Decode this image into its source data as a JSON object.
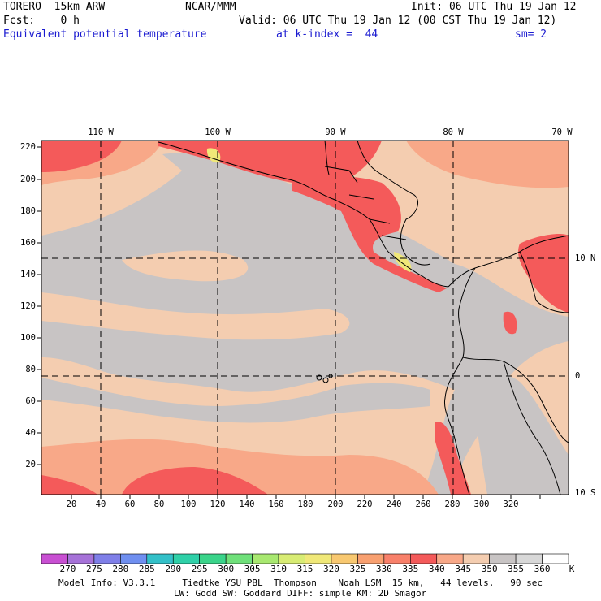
{
  "header": {
    "model": "TORERO  15km ARW",
    "org": "NCAR/MMM",
    "init": "Init: 06 UTC Thu 19 Jan 12",
    "fcst": "Fcst:    0 h",
    "valid": "Valid: 06 UTC Thu 19 Jan 12 (00 CST Thu 19 Jan 12)",
    "field": "Equivalent potential temperature",
    "level": "at k-index =  44",
    "smoothing": "sm= 2"
  },
  "map": {
    "lon_labels": [
      "110 W",
      "100 W",
      "90 W",
      "80 W",
      "70 W"
    ],
    "lat_labels_right": [
      "10 N",
      "0",
      "10 S"
    ],
    "y_ticks": [
      "220",
      "200",
      "180",
      "160",
      "140",
      "120",
      "100",
      "80",
      "60",
      "40",
      "20"
    ],
    "x_ticks": [
      "20",
      "40",
      "60",
      "80",
      "100",
      "120",
      "140",
      "160",
      "180",
      "200",
      "220",
      "240",
      "260",
      "280",
      "300",
      "320"
    ]
  },
  "colorbar": {
    "unit": "K",
    "levels": [
      "270",
      "275",
      "280",
      "285",
      "290",
      "295",
      "300",
      "305",
      "310",
      "315",
      "320",
      "325",
      "330",
      "335",
      "340",
      "345",
      "350",
      "355",
      "360"
    ],
    "colors": [
      "#c84fd2",
      "#a672d8",
      "#7f7fe8",
      "#6f8ff0",
      "#33c0c8",
      "#2fd0a8",
      "#3ad48a",
      "#6fe07a",
      "#a8e870",
      "#d8ec74",
      "#f0e878",
      "#f8c870",
      "#f8a070",
      "#f8806a",
      "#f45a5a",
      "#f8a888",
      "#f4cdb0",
      "#c8c4c4",
      "#d8d8d8",
      "#ffffff"
    ]
  },
  "footer": {
    "line1": "Model Info: V3.3.1     Tiedtke YSU PBL  Thompson    Noah LSM  15 km,   44 levels,   90 sec",
    "line2": "LW: Godd SW: Goddard DIFF: simple KM: 2D Smagor"
  }
}
